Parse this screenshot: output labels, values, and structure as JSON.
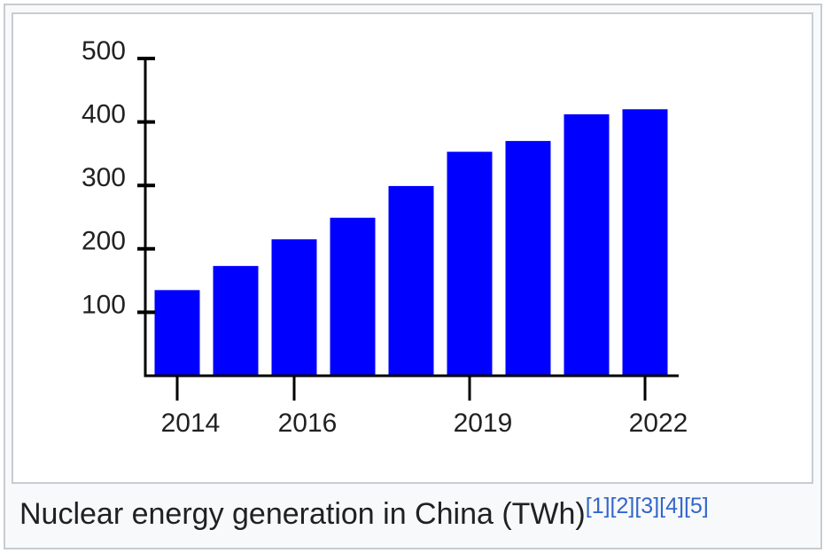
{
  "chart_data": {
    "type": "bar",
    "title": "Nuclear energy generation in China (TWh)",
    "references": [
      "[1]",
      "[2]",
      "[3]",
      "[4]",
      "[5]"
    ],
    "categories": [
      "2014",
      null,
      "2016",
      null,
      null,
      "2019",
      null,
      null,
      "2022"
    ],
    "values": [
      135,
      173,
      215,
      249,
      299,
      353,
      370,
      412,
      420
    ],
    "color": "#0000ff",
    "ylim": [
      0,
      500
    ],
    "yticks": [
      100,
      200,
      300,
      400,
      500
    ]
  }
}
